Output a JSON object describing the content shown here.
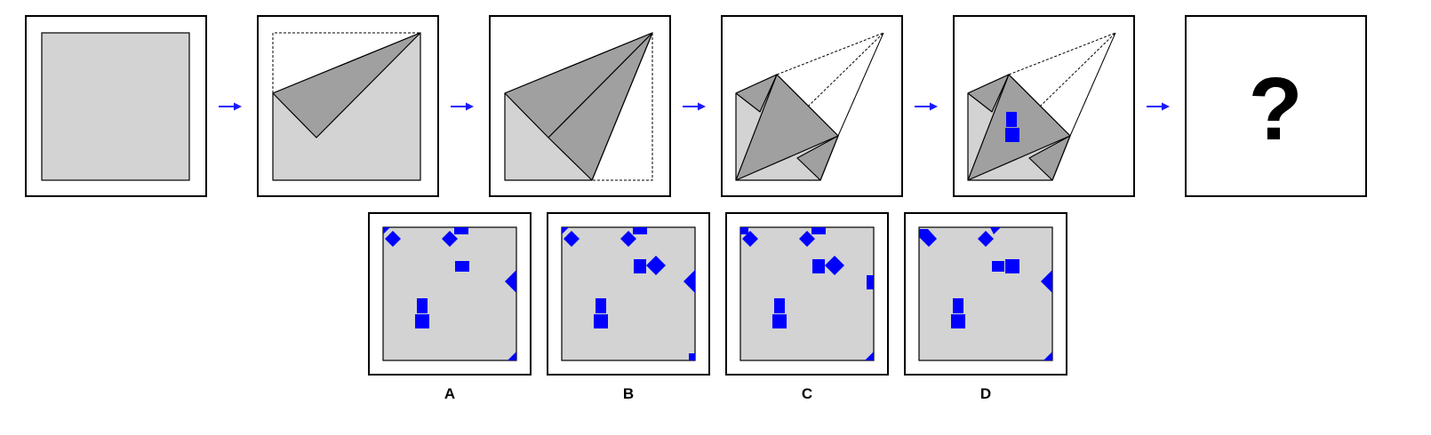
{
  "question_mark": "?",
  "options": [
    {
      "label": "A"
    },
    {
      "label": "B"
    },
    {
      "label": "C"
    },
    {
      "label": "D"
    }
  ],
  "colors": {
    "paper": "#d3d3d3",
    "folded_flap": "#a0a0a0",
    "hole": "#0000ff",
    "arrow": "#1a1aff"
  }
}
